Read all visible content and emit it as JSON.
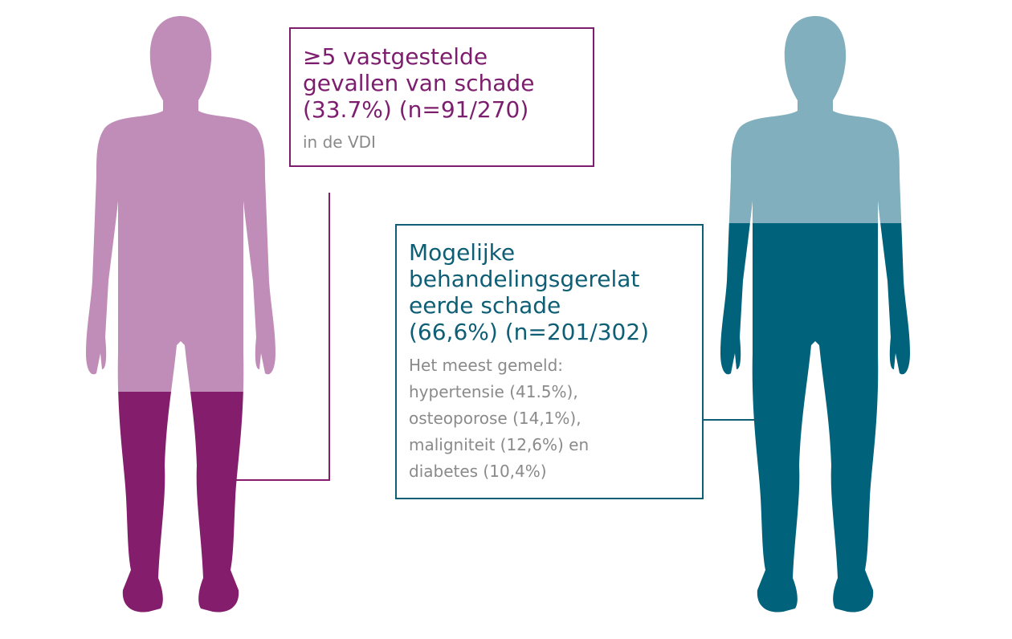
{
  "left_box": {
    "title_lines": [
      "≥5 vastgestelde",
      "gevallen van schade",
      "(33.7%) (n=91/270)"
    ],
    "subtitle": "in de VDI"
  },
  "right_box": {
    "title_lines": [
      "Mogelijke",
      "behandelingsgerelat",
      "eerde schade",
      "(66,6%) (n=201/302)"
    ],
    "detail_lines": [
      "Het meest gemeld:",
      "hypertensie (41.5%),",
      "osteoporose (14,1%),",
      "maligniteit (12,6%) en",
      "diabetes (10,4%)"
    ]
  }
}
